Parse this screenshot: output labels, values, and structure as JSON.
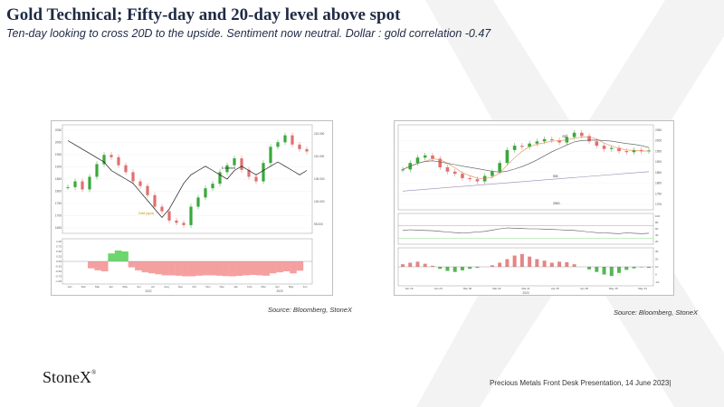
{
  "slide": {
    "title": "Gold Technical; Fifty-day and 20-day level above spot",
    "subtitle": "Ten-day looking to cross 20D to the upside.  Sentiment now neutral.  Dollar : gold correlation -0.47",
    "source_left": "Source: Bloomberg, StoneX",
    "source_right": "Source: Bloomberg, StoneX",
    "logo_text": "StoneX",
    "logo_mark": "®",
    "footer": "Precious Metals Front Desk Presentation, 14 June 2023|"
  },
  "colors": {
    "title": "#1f2a44",
    "watermark": "#f2f2f2",
    "candle_up": "#3aa83a",
    "candle_down": "#e07070",
    "dxy_line": "#1a1a1a",
    "corr_negative": "#f5a0a0",
    "corr_positive": "#6cd66c"
  },
  "chart_left": {
    "type": "line",
    "title": "",
    "series_note": "Gold candles vs DXY overlay with rolling correlation",
    "x_tick_labels": [
      "Jan",
      "Feb",
      "Mar",
      "Apr",
      "May",
      "Jun",
      "Jul",
      "Aug",
      "Sep",
      "Oct",
      "Nov",
      "Dec",
      "Jan",
      "Feb",
      "Mar",
      "Apr",
      "May",
      "Jun"
    ],
    "year_labels": [
      "2022",
      "2023"
    ],
    "y_left_ticks": [
      "2050",
      "2000",
      "1950",
      "1900",
      "1850",
      "1800",
      "1750",
      "1700",
      "1650"
    ],
    "y_right_ticks": [
      "115.000",
      "110.000",
      "105.000",
      "100.000",
      "95.000"
    ],
    "lower_right_ticks": [
      "1.00",
      "0.75",
      "0.50",
      "0.25",
      "0.00",
      "-0.25",
      "-0.50",
      "-0.75",
      "-1.00"
    ],
    "annotations": [
      "$ Inverted",
      "Gold (spot)"
    ],
    "gold_close": [
      1805,
      1830,
      1795,
      1850,
      1905,
      1945,
      1935,
      1900,
      1870,
      1830,
      1810,
      1770,
      1720,
      1700,
      1660,
      1650,
      1640,
      1720,
      1760,
      1800,
      1820,
      1870,
      1900,
      1930,
      1880,
      1850,
      1830,
      1910,
      1980,
      2000,
      2030,
      1990,
      1970,
      1960
    ],
    "dxy_inverted": [
      96,
      97,
      98,
      99,
      100,
      101,
      103,
      104,
      105,
      106,
      108,
      110,
      112,
      114,
      112,
      109,
      106,
      104,
      103,
      102,
      103,
      104,
      105,
      103,
      102,
      103,
      104,
      103,
      102,
      101,
      102,
      103,
      104,
      103
    ],
    "correlation": [
      -0.35,
      -0.45,
      -0.5,
      0.4,
      0.55,
      0.5,
      -0.3,
      -0.45,
      -0.55,
      -0.6,
      -0.65,
      -0.7,
      -0.7,
      -0.72,
      -0.75,
      -0.75,
      -0.72,
      -0.7,
      -0.7,
      -0.72,
      -0.74,
      -0.75,
      -0.73,
      -0.7,
      -0.68,
      -0.7,
      -0.72,
      -0.6,
      -0.55,
      -0.5,
      -0.6,
      -0.47
    ]
  },
  "chart_right": {
    "type": "line",
    "title": "",
    "x_tick_labels": [
      "Jan 16",
      "Jan 23",
      "Mar 06",
      "Mar 20",
      "Mar 21",
      "Apr 25",
      "Apr 28",
      "May 15",
      "May 31"
    ],
    "year_label": "2023",
    "y_right_ticks": [
      "2050",
      "2000",
      "1950",
      "1900",
      "1850",
      "1800",
      "1750",
      "1700"
    ],
    "middle_right_ticks": [
      "100",
      "80",
      "60",
      "40",
      "20"
    ],
    "lower_right_ticks": [
      "30",
      "20",
      "10",
      "0",
      "-10"
    ],
    "annotations": [
      "20D",
      "50D",
      "200D"
    ],
    "gold_close": [
      1870,
      1900,
      1925,
      1935,
      1920,
      1880,
      1860,
      1850,
      1830,
      1825,
      1815,
      1840,
      1860,
      1900,
      1960,
      1980,
      1975,
      1990,
      2000,
      2010,
      2005,
      1995,
      2020,
      2040,
      2025,
      2000,
      1980,
      1965,
      1970,
      1955,
      1950,
      1960,
      1955,
      1958
    ],
    "rsi": [
      55,
      57,
      56,
      55,
      54,
      52,
      50,
      48,
      47,
      48,
      50,
      52,
      56,
      60,
      63,
      62,
      61,
      60,
      60,
      59,
      58,
      57,
      56,
      55,
      53,
      50,
      48,
      47,
      46,
      45,
      47,
      46,
      45,
      46
    ],
    "macd_hist": [
      5,
      8,
      10,
      6,
      2,
      -4,
      -8,
      -10,
      -7,
      -4,
      -2,
      0,
      3,
      8,
      15,
      22,
      25,
      20,
      15,
      12,
      8,
      10,
      9,
      5,
      0,
      -5,
      -10,
      -15,
      -18,
      -12,
      -6,
      -3,
      -1,
      -2
    ]
  }
}
